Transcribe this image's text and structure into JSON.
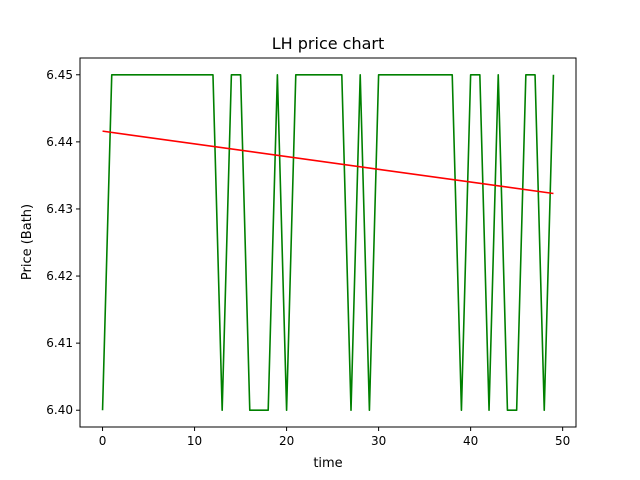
{
  "chart_data": {
    "type": "line",
    "title": "LH price chart",
    "xlabel": "time",
    "ylabel": "Price (Bath)",
    "xlim": [
      -2.45,
      51.45
    ],
    "ylim": [
      6.3975,
      6.4525
    ],
    "x_ticks": [
      0,
      10,
      20,
      30,
      40,
      50
    ],
    "x_tick_labels": [
      "0",
      "10",
      "20",
      "30",
      "40",
      "50"
    ],
    "y_ticks": [
      6.4,
      6.41,
      6.42,
      6.43,
      6.44,
      6.45
    ],
    "y_tick_labels": [
      "6.40",
      "6.41",
      "6.42",
      "6.43",
      "6.44",
      "6.45"
    ],
    "grid": false,
    "series": [
      {
        "color": "#008000",
        "x": [
          0,
          1,
          2,
          3,
          4,
          5,
          6,
          7,
          8,
          9,
          10,
          11,
          12,
          13,
          14,
          15,
          16,
          17,
          18,
          19,
          20,
          21,
          22,
          23,
          24,
          25,
          26,
          27,
          28,
          29,
          30,
          31,
          32,
          33,
          34,
          35,
          36,
          37,
          38,
          39,
          40,
          41,
          42,
          43,
          44,
          45,
          46,
          47,
          48,
          49
        ],
        "y": [
          6.4,
          6.45,
          6.45,
          6.45,
          6.45,
          6.45,
          6.45,
          6.45,
          6.45,
          6.45,
          6.45,
          6.45,
          6.45,
          6.4,
          6.45,
          6.45,
          6.4,
          6.4,
          6.4,
          6.45,
          6.4,
          6.45,
          6.45,
          6.45,
          6.45,
          6.45,
          6.45,
          6.4,
          6.45,
          6.4,
          6.45,
          6.45,
          6.45,
          6.45,
          6.45,
          6.45,
          6.45,
          6.45,
          6.45,
          6.4,
          6.45,
          6.45,
          6.4,
          6.45,
          6.4,
          6.4,
          6.45,
          6.45,
          6.4,
          6.45
        ]
      },
      {
        "color": "#ff0000",
        "x": [
          0,
          49
        ],
        "y": [
          6.4416,
          6.4323
        ]
      }
    ]
  }
}
